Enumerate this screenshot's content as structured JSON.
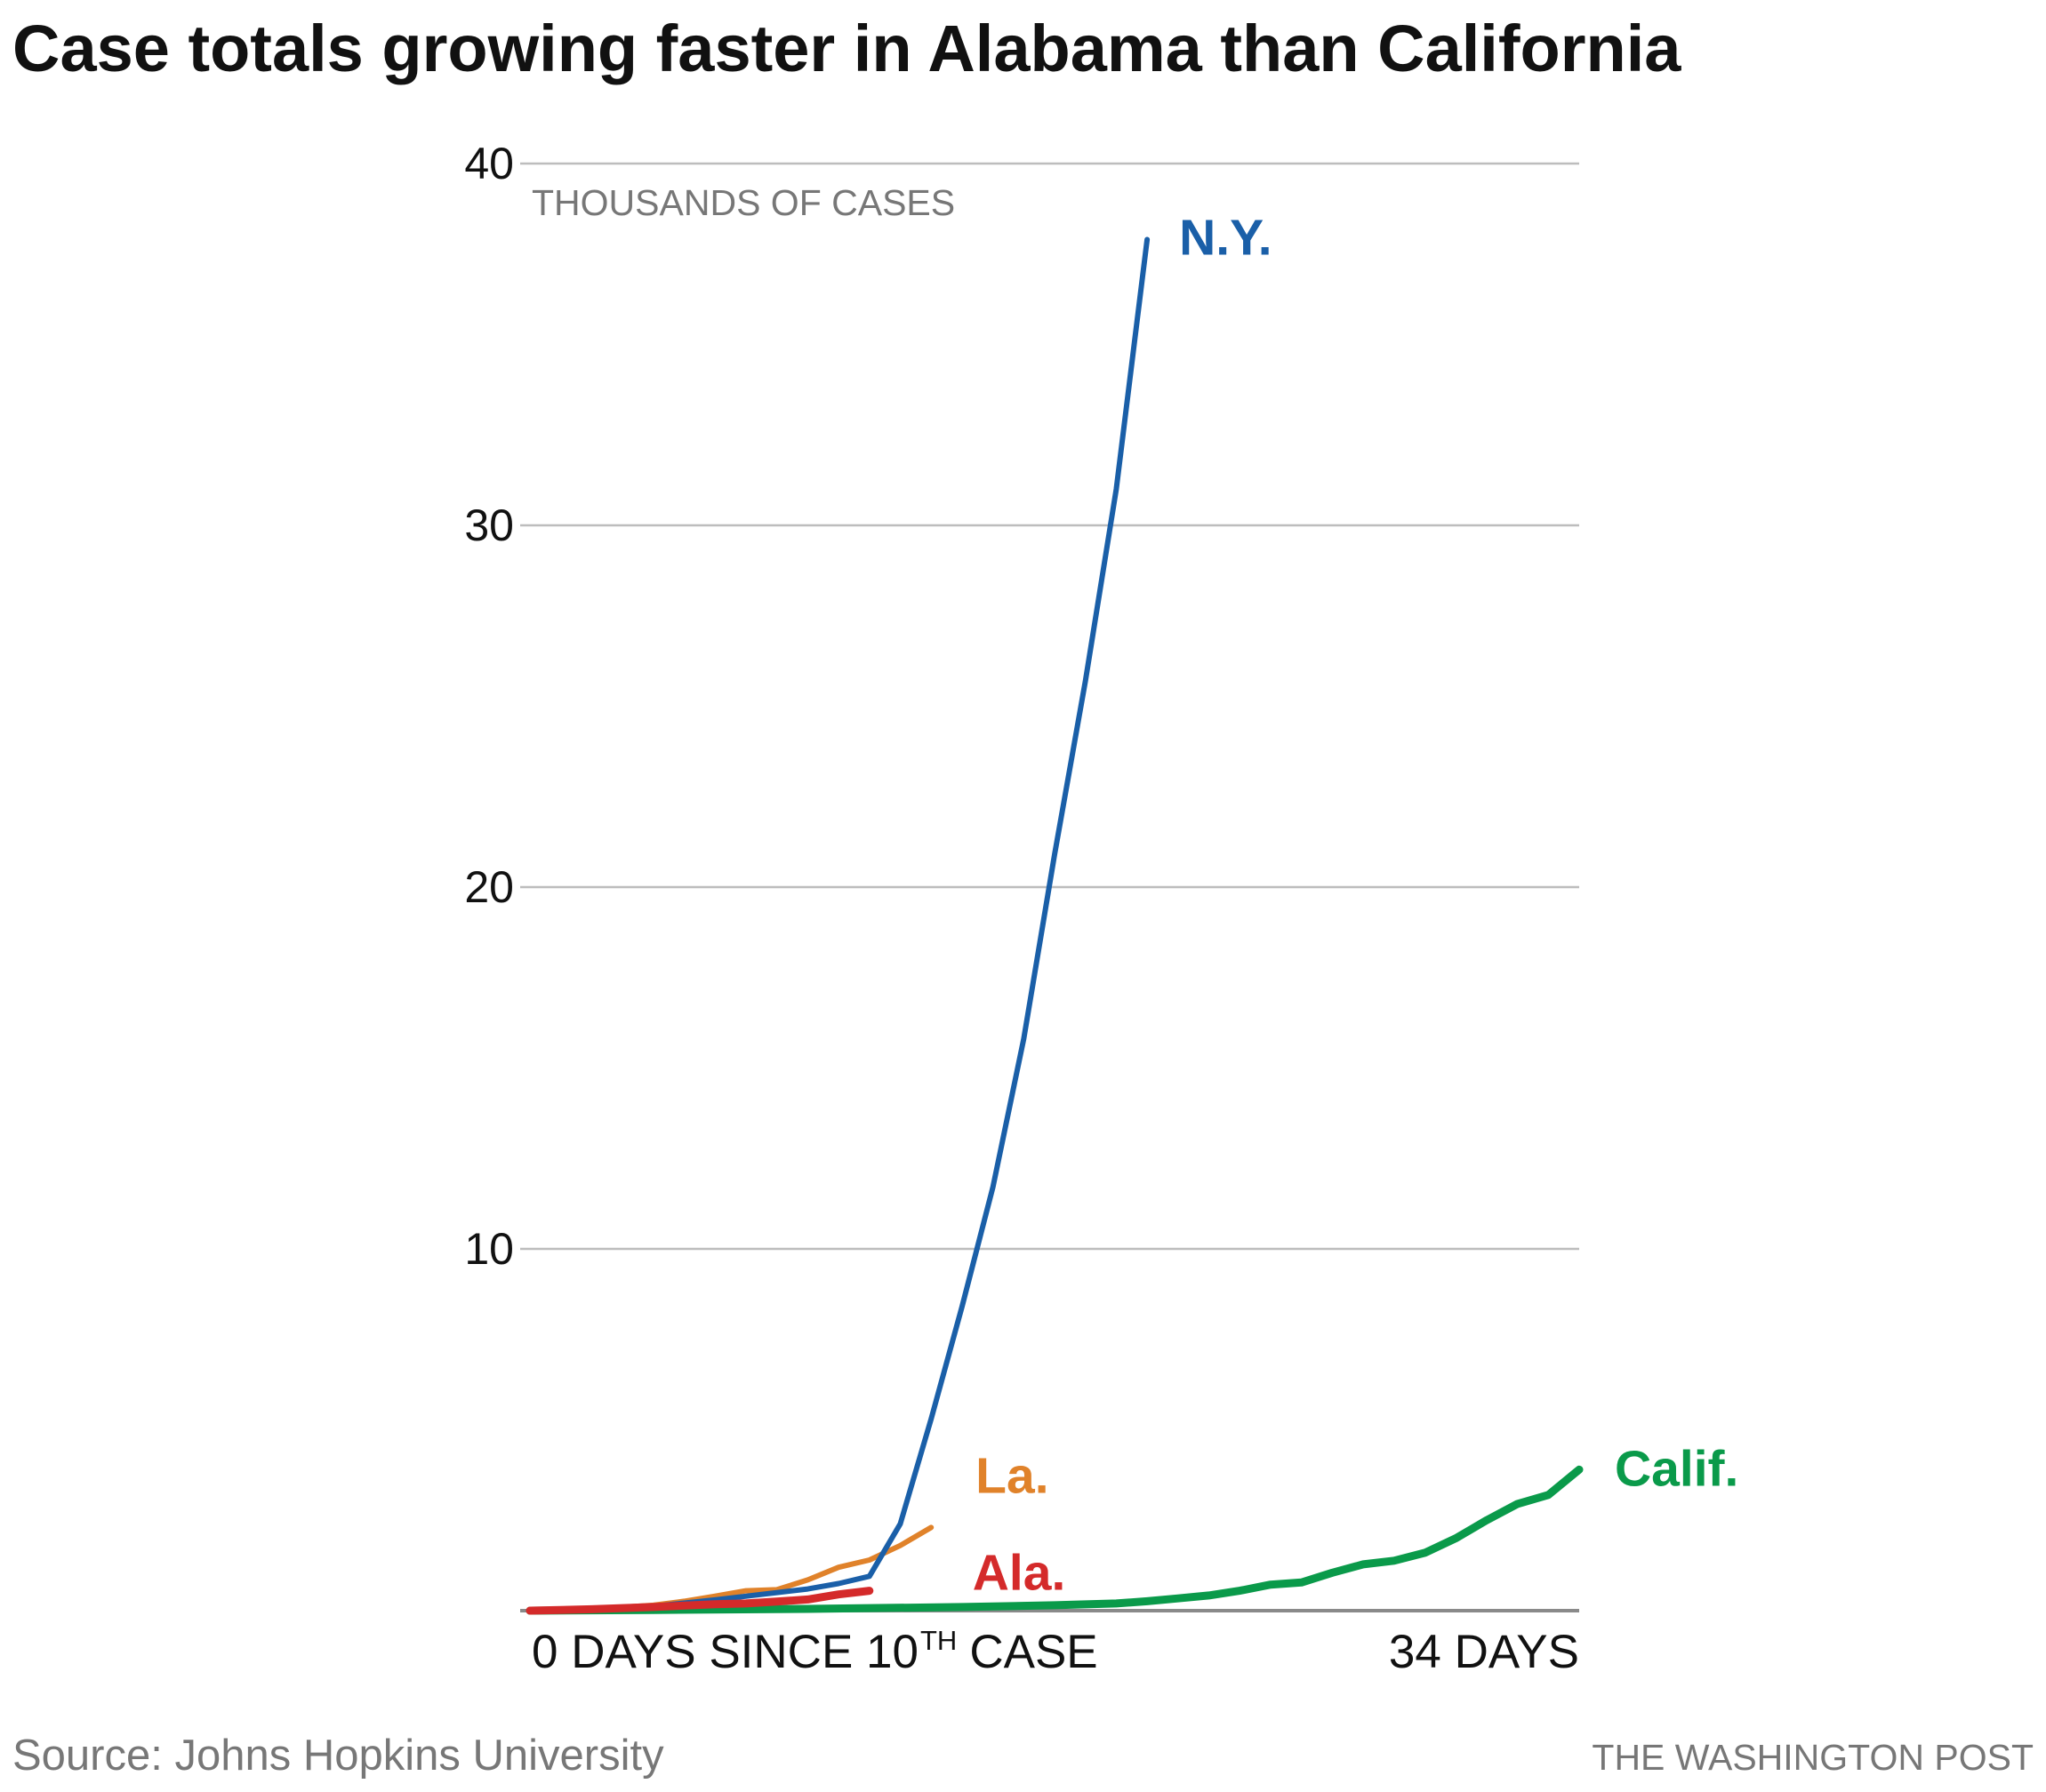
{
  "chart_data": {
    "type": "line",
    "title": "Case totals growing faster in Alabama than California",
    "ylabel": "THOUSANDS OF CASES",
    "ylim": [
      0,
      40
    ],
    "y_ticks": [
      10,
      20,
      30,
      40
    ],
    "y_tick_labels": [
      "10",
      "20",
      "30",
      "40"
    ],
    "xlim": [
      0,
      34
    ],
    "x_label_start": {
      "main": "0 DAYS SINCE 10",
      "sup": "TH",
      "after": "CASE"
    },
    "x_label_end": "34 DAYS",
    "grid": true,
    "series": [
      {
        "name": "Calif.",
        "color": "#0a9a4a",
        "width": "thick",
        "x": [
          0,
          4,
          9,
          14,
          17,
          19,
          20,
          21,
          22,
          23,
          24,
          25,
          26,
          27,
          28,
          29,
          30,
          31,
          32,
          33,
          34
        ],
        "values": [
          0.0,
          0.02,
          0.05,
          0.1,
          0.15,
          0.2,
          0.26,
          0.34,
          0.42,
          0.55,
          0.72,
          0.78,
          1.05,
          1.28,
          1.38,
          1.6,
          2.0,
          2.5,
          2.95,
          3.2,
          3.9
        ]
      },
      {
        "name": "N.Y.",
        "color": "#1a5fa8",
        "width": "normal",
        "x": [
          0,
          2,
          4,
          6,
          8,
          9,
          10,
          11,
          12,
          13,
          14,
          15,
          16,
          17,
          18,
          19,
          20,
          21,
          22
        ],
        "values": [
          0.0,
          0.04,
          0.12,
          0.3,
          0.5,
          0.6,
          0.75,
          0.95,
          2.4,
          5.3,
          8.4,
          11.7,
          15.8,
          20.9,
          25.7,
          31.0,
          37.9,
          null,
          null
        ]
      },
      {
        "name": "La.",
        "color": "#e0822a",
        "width": "normal",
        "x": [
          0,
          2,
          4,
          5,
          6,
          7,
          8,
          9,
          10,
          11,
          12,
          13,
          14
        ],
        "values": [
          0.0,
          0.04,
          0.15,
          0.26,
          0.4,
          0.55,
          0.58,
          0.85,
          1.2,
          1.4,
          1.8,
          2.3,
          null
        ]
      },
      {
        "name": "Ala.",
        "color": "#d42a2a",
        "width": "thick",
        "x": [
          0,
          2,
          4,
          6,
          7,
          8,
          9,
          10,
          11
        ],
        "values": [
          0.0,
          0.04,
          0.1,
          0.18,
          0.2,
          0.25,
          0.31,
          0.45,
          0.55
        ]
      }
    ]
  },
  "source": "Source: Johns Hopkins University",
  "credit": "THE WASHINGTON POST"
}
